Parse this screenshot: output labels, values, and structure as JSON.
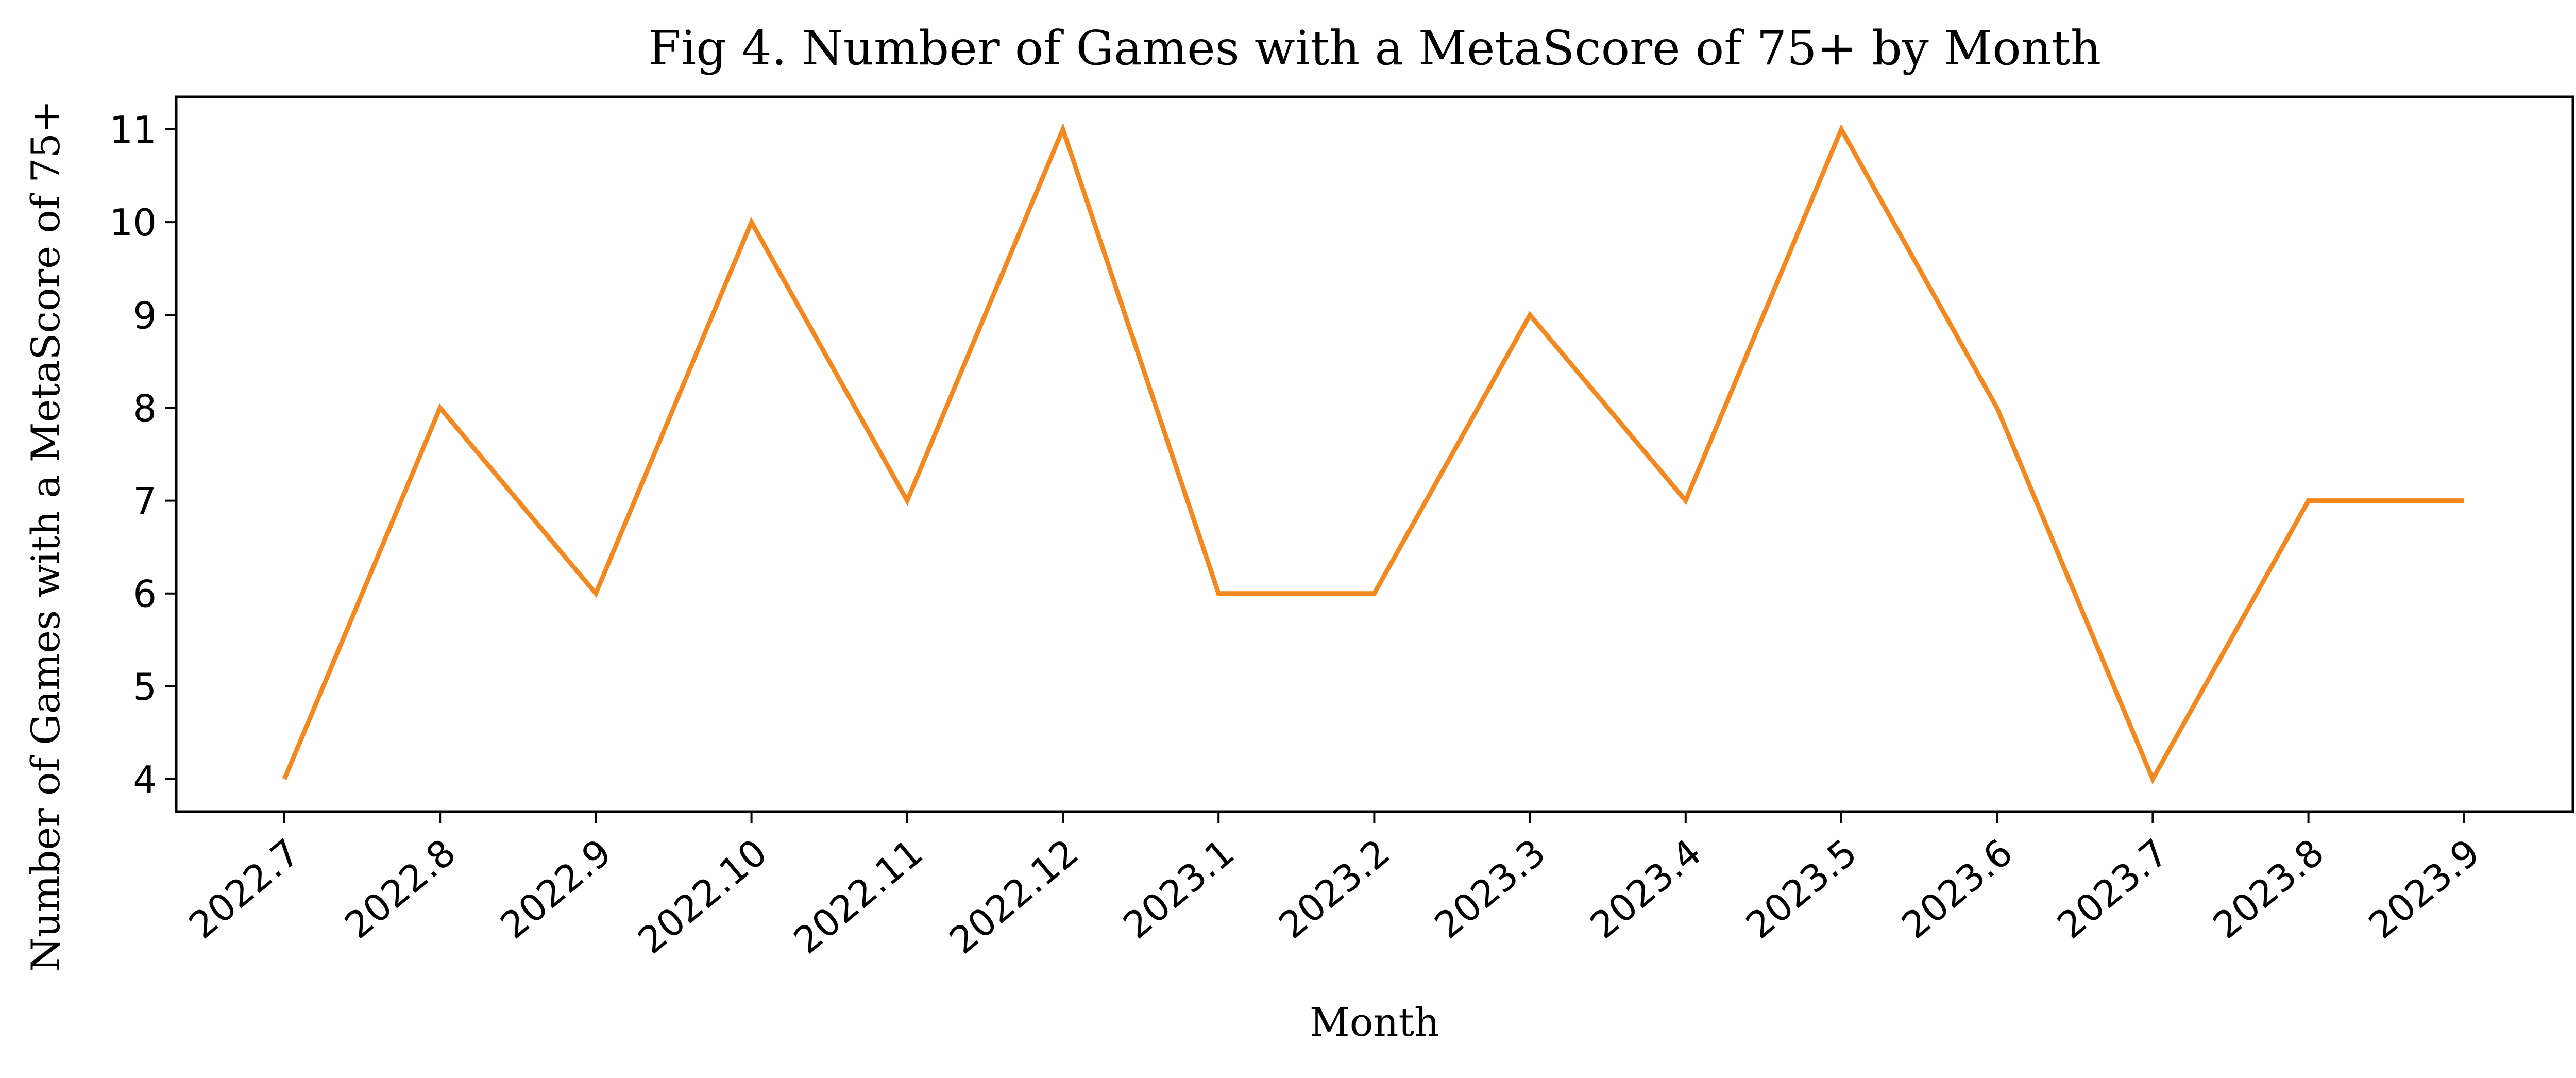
{
  "chart_data": {
    "type": "line",
    "title": "Fig 4. Number of Games with a MetaScore of 75+ by Month",
    "xlabel": "Month",
    "ylabel": "Number of Games with a MetaScore of 75+",
    "categories": [
      "2022.7",
      "2022.8",
      "2022.9",
      "2022.10",
      "2022.11",
      "2022.12",
      "2023.1",
      "2023.2",
      "2023.3",
      "2023.4",
      "2023.5",
      "2023.6",
      "2023.7",
      "2023.8",
      "2023.9"
    ],
    "series": [
      {
        "values": [
          4,
          8,
          6,
          10,
          7,
          11,
          6,
          6,
          9,
          7,
          11,
          8,
          4,
          7,
          7
        ],
        "color": "#f5871f"
      }
    ],
    "yticks": [
      4,
      5,
      6,
      7,
      8,
      9,
      10,
      11
    ],
    "ylim": [
      3.65,
      11.35
    ],
    "grid": false,
    "legend": "none"
  }
}
